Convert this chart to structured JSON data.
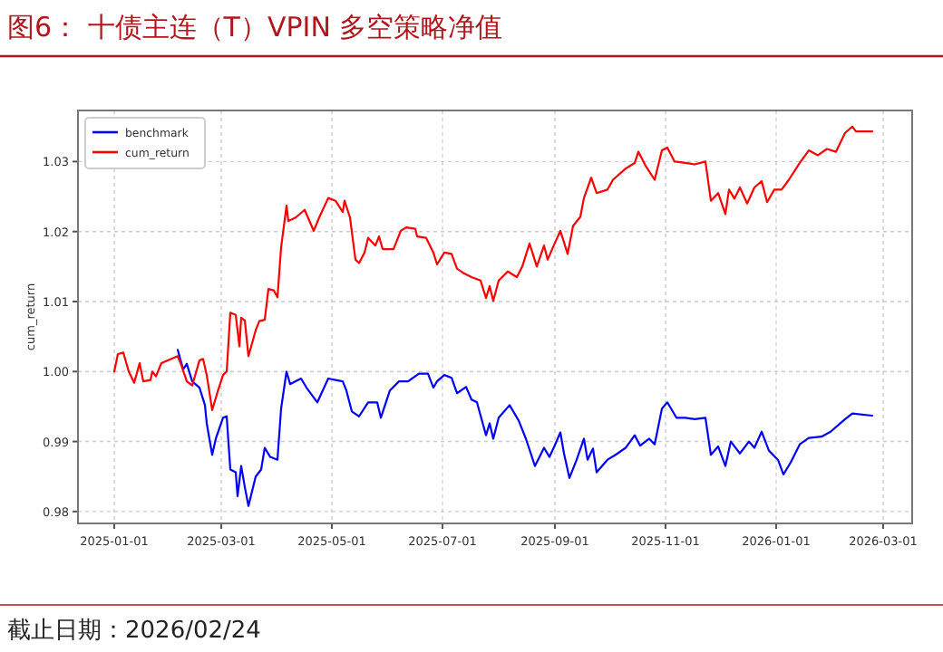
{
  "chart_data": {
    "type": "line",
    "title": "图6：  十债主连（T）VPIN 多空策略净值",
    "ylabel": "cum_return",
    "annotations": [
      "截止日期：2026/02/24"
    ],
    "xlim": [
      "2024-12-12",
      "2026-03-17"
    ],
    "ylim": [
      0.9783,
      1.0373
    ],
    "xticks": [
      {
        "value": "2025-01-01",
        "label": "2025-01-01"
      },
      {
        "value": "2025-03-01",
        "label": "2025-03-01"
      },
      {
        "value": "2025-05-01",
        "label": "2025-05-01"
      },
      {
        "value": "2025-07-01",
        "label": "2025-07-01"
      },
      {
        "value": "2025-09-01",
        "label": "2025-09-01"
      },
      {
        "value": "2025-11-01",
        "label": "2025-11-01"
      },
      {
        "value": "2026-01-01",
        "label": "2026-01-01"
      },
      {
        "value": "2026-03-01",
        "label": "2026-03-01"
      }
    ],
    "yticks": [
      {
        "value": 0.98,
        "label": "0.98"
      },
      {
        "value": 0.99,
        "label": "0.99"
      },
      {
        "value": 1.0,
        "label": "1.00"
      },
      {
        "value": 1.01,
        "label": "1.01"
      },
      {
        "value": 1.02,
        "label": "1.02"
      },
      {
        "value": 1.03,
        "label": "1.03"
      }
    ],
    "grid": true,
    "legend": "top left",
    "line_style": "solid",
    "marker": "none",
    "series": [
      {
        "name": "benchmark",
        "color": "#0000ff",
        "x": [
          "2025-02-05",
          "2025-02-08",
          "2025-02-10",
          "2025-02-13",
          "2025-02-17",
          "2025-02-20",
          "2025-02-21",
          "2025-02-24",
          "2025-02-26",
          "2025-03-02",
          "2025-03-04",
          "2025-03-06",
          "2025-03-09",
          "2025-03-10",
          "2025-03-12",
          "2025-03-14",
          "2025-03-16",
          "2025-03-20",
          "2025-03-23",
          "2025-03-25",
          "2025-03-28",
          "2025-04-01",
          "2025-04-03",
          "2025-04-06",
          "2025-04-08",
          "2025-04-11",
          "2025-04-14",
          "2025-04-17",
          "2025-04-23",
          "2025-04-29",
          "2025-05-03",
          "2025-05-07",
          "2025-05-09",
          "2025-05-12",
          "2025-05-16",
          "2025-05-21",
          "2025-05-26",
          "2025-05-28",
          "2025-06-02",
          "2025-06-07",
          "2025-06-12",
          "2025-06-18",
          "2025-06-23",
          "2025-06-26",
          "2025-06-28",
          "2025-07-02",
          "2025-07-06",
          "2025-07-09",
          "2025-07-14",
          "2025-07-17",
          "2025-07-20",
          "2025-07-25",
          "2025-07-27",
          "2025-07-29",
          "2025-08-01",
          "2025-08-07",
          "2025-08-12",
          "2025-08-16",
          "2025-08-21",
          "2025-08-26",
          "2025-08-29",
          "2025-09-01",
          "2025-09-04",
          "2025-09-06",
          "2025-09-09",
          "2025-09-13",
          "2025-09-17",
          "2025-09-19",
          "2025-09-22",
          "2025-09-24",
          "2025-09-30",
          "2025-10-05",
          "2025-10-10",
          "2025-10-15",
          "2025-10-18",
          "2025-10-23",
          "2025-10-26",
          "2025-10-30",
          "2025-11-02",
          "2025-11-07",
          "2025-11-12",
          "2025-11-17",
          "2025-11-23",
          "2025-11-26",
          "2025-11-30",
          "2025-12-04",
          "2025-12-07",
          "2025-12-12",
          "2025-12-17",
          "2025-12-20",
          "2025-12-24",
          "2025-12-28",
          "2026-01-02",
          "2026-01-05",
          "2026-01-09",
          "2026-01-14",
          "2026-01-19",
          "2026-01-26",
          "2026-01-31",
          "2026-02-08",
          "2026-02-12",
          "2026-02-23"
        ],
        "values": [
          1.0031,
          1.0003,
          1.0011,
          0.9986,
          0.9977,
          0.9952,
          0.9926,
          0.9881,
          0.9904,
          0.9934,
          0.9936,
          0.986,
          0.9856,
          0.9822,
          0.9865,
          0.9835,
          0.9808,
          0.985,
          0.986,
          0.9891,
          0.9878,
          0.9874,
          0.9947,
          1.0,
          0.9982,
          0.9986,
          0.999,
          0.9977,
          0.9956,
          0.999,
          0.9988,
          0.9986,
          0.9973,
          0.9943,
          0.9936,
          0.9956,
          0.9956,
          0.9934,
          0.9973,
          0.9986,
          0.9986,
          0.9997,
          0.9997,
          0.9977,
          0.9986,
          0.9995,
          0.9991,
          0.9969,
          0.9978,
          0.996,
          0.9956,
          0.9909,
          0.9926,
          0.9904,
          0.9934,
          0.9952,
          0.993,
          0.9904,
          0.9865,
          0.9891,
          0.9878,
          0.9895,
          0.9913,
          0.9883,
          0.9848,
          0.9874,
          0.9904,
          0.9874,
          0.989,
          0.9856,
          0.9874,
          0.9882,
          0.9891,
          0.9909,
          0.9894,
          0.9904,
          0.9896,
          0.9947,
          0.9956,
          0.9934,
          0.9934,
          0.9932,
          0.9934,
          0.9881,
          0.9893,
          0.9865,
          0.99,
          0.9883,
          0.99,
          0.9891,
          0.9914,
          0.9887,
          0.9874,
          0.9853,
          0.987,
          0.9896,
          0.9905,
          0.9907,
          0.9914,
          0.9932,
          0.994,
          0.9937
        ]
      },
      {
        "name": "cum_return",
        "color": "#ff0000",
        "x": [
          "2025-01-01",
          "2025-01-03",
          "2025-01-06",
          "2025-01-09",
          "2025-01-12",
          "2025-01-15",
          "2025-01-17",
          "2025-01-21",
          "2025-01-22",
          "2025-01-24",
          "2025-01-27",
          "2025-02-05",
          "2025-02-07",
          "2025-02-10",
          "2025-02-13",
          "2025-02-17",
          "2025-02-19",
          "2025-02-21",
          "2025-02-24",
          "2025-02-27",
          "2025-03-02",
          "2025-03-04",
          "2025-03-06",
          "2025-03-09",
          "2025-03-11",
          "2025-03-12",
          "2025-03-14",
          "2025-03-16",
          "2025-03-20",
          "2025-03-22",
          "2025-03-25",
          "2025-03-27",
          "2025-03-30",
          "2025-04-01",
          "2025-04-03",
          "2025-04-06",
          "2025-04-07",
          "2025-04-11",
          "2025-04-16",
          "2025-04-21",
          "2025-04-24",
          "2025-04-29",
          "2025-05-03",
          "2025-05-07",
          "2025-05-08",
          "2025-05-11",
          "2025-05-14",
          "2025-05-16",
          "2025-05-19",
          "2025-05-21",
          "2025-05-25",
          "2025-05-27",
          "2025-05-29",
          "2025-06-04",
          "2025-06-08",
          "2025-06-11",
          "2025-06-16",
          "2025-06-17",
          "2025-06-22",
          "2025-06-26",
          "2025-06-28",
          "2025-07-02",
          "2025-07-06",
          "2025-07-09",
          "2025-07-13",
          "2025-07-17",
          "2025-07-22",
          "2025-07-25",
          "2025-07-27",
          "2025-07-29",
          "2025-08-01",
          "2025-08-06",
          "2025-08-11",
          "2025-08-14",
          "2025-08-18",
          "2025-08-22",
          "2025-08-26",
          "2025-08-28",
          "2025-09-01",
          "2025-09-04",
          "2025-09-08",
          "2025-09-11",
          "2025-09-15",
          "2025-09-17",
          "2025-09-21",
          "2025-09-24",
          "2025-09-30",
          "2025-10-03",
          "2025-10-10",
          "2025-10-15",
          "2025-10-17",
          "2025-10-21",
          "2025-10-26",
          "2025-10-30",
          "2025-11-02",
          "2025-11-06",
          "2025-11-12",
          "2025-11-17",
          "2025-11-23",
          "2025-11-26",
          "2025-11-30",
          "2025-12-04",
          "2025-12-06",
          "2025-12-09",
          "2025-12-12",
          "2025-12-16",
          "2025-12-20",
          "2025-12-24",
          "2025-12-27",
          "2025-12-31",
          "2026-01-04",
          "2026-01-08",
          "2026-01-14",
          "2026-01-19",
          "2026-01-24",
          "2026-01-29",
          "2026-02-03",
          "2026-02-08",
          "2026-02-12",
          "2026-02-14",
          "2026-02-23"
        ],
        "values": [
          1.0,
          1.0025,
          1.0027,
          1.0,
          0.9984,
          1.0012,
          0.9986,
          0.9988,
          1.0,
          0.9993,
          1.0012,
          1.0022,
          1.0009,
          0.9986,
          0.998,
          1.0016,
          1.0018,
          0.9995,
          0.9945,
          0.9971,
          0.9995,
          1.0,
          1.0084,
          1.0081,
          1.0036,
          1.0077,
          1.0073,
          1.0022,
          1.0059,
          1.0072,
          1.0074,
          1.0118,
          1.0116,
          1.0106,
          1.0177,
          1.0237,
          1.0215,
          1.022,
          1.0231,
          1.0201,
          1.022,
          1.0248,
          1.0244,
          1.0228,
          1.0244,
          1.022,
          1.016,
          1.0155,
          1.017,
          1.0191,
          1.018,
          1.0193,
          1.0175,
          1.0175,
          1.0201,
          1.0206,
          1.0204,
          1.0193,
          1.0191,
          1.017,
          1.0153,
          1.017,
          1.0168,
          1.0147,
          1.014,
          1.0135,
          1.013,
          1.0105,
          1.0122,
          1.0101,
          1.013,
          1.0143,
          1.0135,
          1.015,
          1.0183,
          1.015,
          1.018,
          1.016,
          1.0184,
          1.0201,
          1.0168,
          1.0208,
          1.0221,
          1.0248,
          1.0277,
          1.0255,
          1.026,
          1.0274,
          1.029,
          1.0298,
          1.0314,
          1.0294,
          1.0274,
          1.0316,
          1.032,
          1.03,
          1.0298,
          1.0296,
          1.03,
          1.0244,
          1.0255,
          1.0225,
          1.026,
          1.0247,
          1.0263,
          1.024,
          1.0263,
          1.0272,
          1.0242,
          1.026,
          1.026,
          1.0274,
          1.0298,
          1.0316,
          1.0309,
          1.0318,
          1.0314,
          1.0341,
          1.035,
          1.0343,
          1.0343
        ]
      }
    ]
  }
}
